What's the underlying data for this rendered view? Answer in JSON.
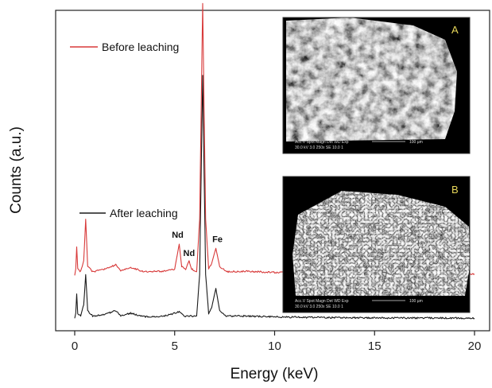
{
  "chart_data": {
    "type": "line",
    "xlabel": "Energy (keV)",
    "ylabel": "Counts (a.u.)",
    "xlim": [
      -1,
      21
    ],
    "xticks": [
      0,
      5,
      10,
      15,
      20
    ],
    "xtick_labels": [
      "0",
      "5",
      "10",
      "15",
      "20"
    ],
    "y_ticks_shown": false,
    "grid": false,
    "legend_placement": "upper-left of each spectrum",
    "series": [
      {
        "name": "Before leaching",
        "color": "#d83a3a",
        "baseline_level": 0.16,
        "points": [
          [
            0.0,
            0.0
          ],
          [
            0.05,
            0.02
          ],
          [
            0.1,
            0.1
          ],
          [
            0.15,
            0.02
          ],
          [
            0.3,
            0.01
          ],
          [
            0.45,
            0.05
          ],
          [
            0.55,
            0.2
          ],
          [
            0.65,
            0.03
          ],
          [
            0.9,
            0.01
          ],
          [
            1.5,
            0.02
          ],
          [
            2.05,
            0.035
          ],
          [
            2.3,
            0.015
          ],
          [
            2.8,
            0.025
          ],
          [
            3.5,
            0.01
          ],
          [
            4.5,
            0.012
          ],
          [
            5.0,
            0.02
          ],
          [
            5.1,
            0.06
          ],
          [
            5.23,
            0.11
          ],
          [
            5.35,
            0.03
          ],
          [
            5.55,
            0.02
          ],
          [
            5.72,
            0.05
          ],
          [
            5.85,
            0.02
          ],
          [
            6.1,
            0.01
          ],
          [
            6.25,
            0.2
          ],
          [
            6.4,
            0.98
          ],
          [
            6.55,
            0.2
          ],
          [
            6.7,
            0.02
          ],
          [
            6.85,
            0.04
          ],
          [
            7.06,
            0.095
          ],
          [
            7.25,
            0.03
          ],
          [
            7.6,
            0.01
          ],
          [
            8.5,
            0.012
          ],
          [
            10.0,
            0.008
          ],
          [
            12.0,
            0.006
          ],
          [
            14.0,
            0.005
          ],
          [
            16.0,
            0.004
          ],
          [
            18.0,
            0.003
          ],
          [
            20.0,
            0.002
          ]
        ]
      },
      {
        "name": "After leaching",
        "color": "#1a1a1a",
        "baseline_level": 0.0,
        "points": [
          [
            0.0,
            0.0
          ],
          [
            0.05,
            0.02
          ],
          [
            0.1,
            0.09
          ],
          [
            0.15,
            0.02
          ],
          [
            0.3,
            0.01
          ],
          [
            0.45,
            0.05
          ],
          [
            0.55,
            0.16
          ],
          [
            0.65,
            0.03
          ],
          [
            0.9,
            0.01
          ],
          [
            1.5,
            0.015
          ],
          [
            2.05,
            0.03
          ],
          [
            2.3,
            0.012
          ],
          [
            2.8,
            0.02
          ],
          [
            3.5,
            0.008
          ],
          [
            4.5,
            0.01
          ],
          [
            5.23,
            0.025
          ],
          [
            5.5,
            0.01
          ],
          [
            6.1,
            0.01
          ],
          [
            6.25,
            0.16
          ],
          [
            6.4,
            0.88
          ],
          [
            6.55,
            0.16
          ],
          [
            6.7,
            0.02
          ],
          [
            6.85,
            0.04
          ],
          [
            7.06,
            0.11
          ],
          [
            7.25,
            0.03
          ],
          [
            7.6,
            0.01
          ],
          [
            8.5,
            0.01
          ],
          [
            10.0,
            0.007
          ],
          [
            12.0,
            0.005
          ],
          [
            14.0,
            0.004
          ],
          [
            16.0,
            0.003
          ],
          [
            18.0,
            0.003
          ],
          [
            20.0,
            0.002
          ]
        ]
      }
    ],
    "annotations": [
      {
        "text": "Fe",
        "x": 6.4,
        "series": 0
      },
      {
        "text": "Nd",
        "x": 5.23,
        "series": 0
      },
      {
        "text": "Nd",
        "x": 5.72,
        "series": 0
      },
      {
        "text": "Fe",
        "x": 7.06,
        "series": 0
      }
    ]
  },
  "insets": [
    {
      "label": "A",
      "info_line1": "Acc.V  Spot Magn   Det  WD  Exp",
      "info_line2": "30.0 kV 3.0   250x    SE   10.0  1",
      "scale_text": "100 µm"
    },
    {
      "label": "B",
      "info_line1": "Acc.V  Spot Magn   Det  WD  Exp",
      "info_line2": "30.0 kV 3.0   250x    SE   10.0  1",
      "scale_text": "100 µm"
    }
  ]
}
